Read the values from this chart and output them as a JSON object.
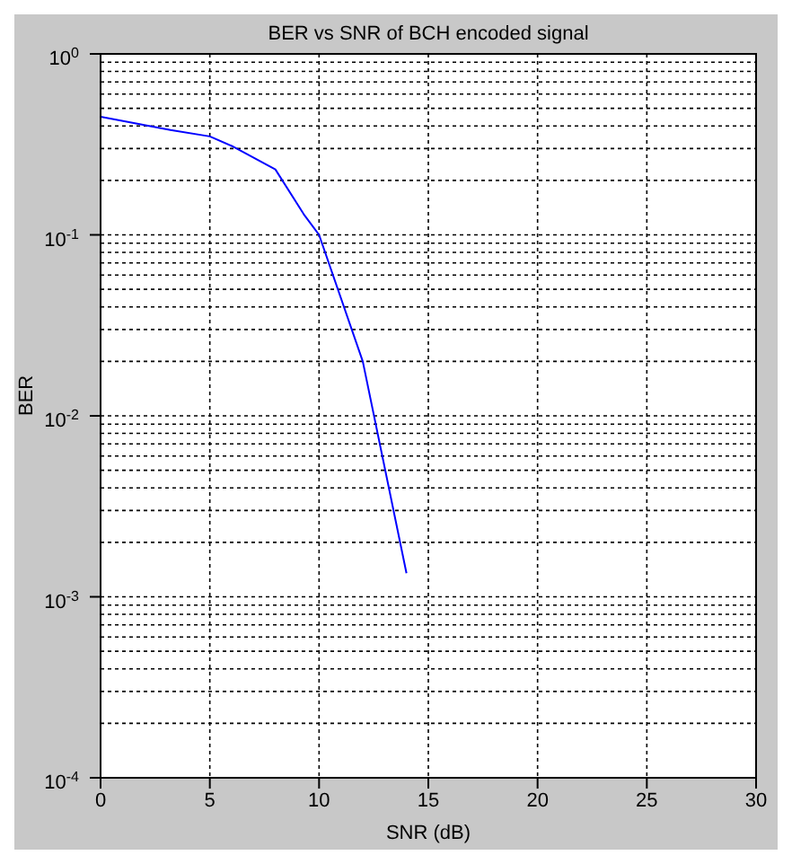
{
  "chart_data": {
    "type": "line",
    "title": "BER vs SNR of BCH encoded signal",
    "xlabel": "SNR (dB)",
    "ylabel": "BER",
    "x": [
      0,
      3.2,
      5,
      6,
      8,
      9.3,
      10,
      12,
      14
    ],
    "series": [
      {
        "color": "#0000ff",
        "values": [
          0.45,
          0.38,
          0.35,
          0.31,
          0.23,
          0.13,
          0.1,
          0.02,
          0.00135
        ]
      }
    ],
    "xlim": [
      0,
      30
    ],
    "xticks": [
      0,
      5,
      10,
      15,
      20,
      25,
      30
    ],
    "ylim": [
      0.0001,
      1
    ],
    "yticks": [
      {
        "value": 1,
        "label": "10$^{0}$"
      },
      {
        "value": 0.1,
        "label": "10$^{-1}$"
      },
      {
        "value": 0.01,
        "label": "10$^{-2}$"
      },
      {
        "value": 0.001,
        "label": "10$^{-3}$"
      },
      {
        "value": 0.0001,
        "label": "10$^{-4}$"
      }
    ],
    "log": "y",
    "grid": true,
    "marker": "none",
    "line_style": "solid",
    "legend": false
  }
}
